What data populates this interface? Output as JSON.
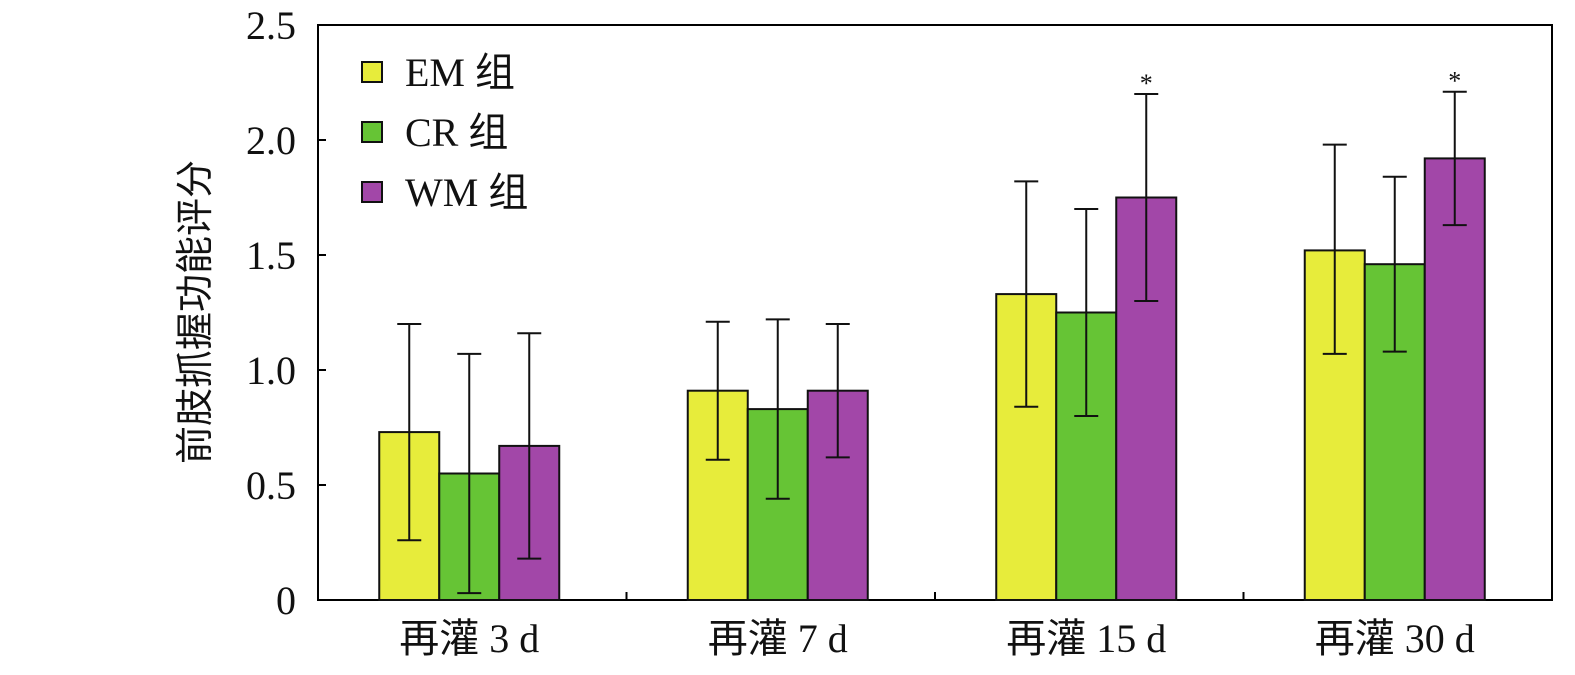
{
  "chart_data": {
    "type": "bar",
    "title": "",
    "xlabel": "",
    "ylabel": "前肢抓握功能评分",
    "ylim": [
      0,
      2.5
    ],
    "yticks": [
      "0",
      "0.5",
      "1.0",
      "1.5",
      "2.0",
      "2.5"
    ],
    "ytick_values": [
      0,
      0.5,
      1.0,
      1.5,
      2.0,
      2.5
    ],
    "categories": [
      "再灌 3 d",
      "再灌 7 d",
      "再灌 15 d",
      "再灌 30 d"
    ],
    "legend_position": "top-left",
    "series": [
      {
        "name": "EM 组",
        "color": "#e7ec3b",
        "values": [
          0.73,
          0.91,
          1.33,
          1.52
        ],
        "err_upper": [
          1.2,
          1.21,
          1.82,
          1.98
        ],
        "err_lower": [
          0.26,
          0.61,
          0.84,
          1.07
        ]
      },
      {
        "name": "CR 组",
        "color": "#66c435",
        "values": [
          0.55,
          0.83,
          1.25,
          1.46
        ],
        "err_upper": [
          1.07,
          1.22,
          1.7,
          1.84
        ],
        "err_lower": [
          0.03,
          0.44,
          0.8,
          1.08
        ]
      },
      {
        "name": "WM 组",
        "color": "#a247a8",
        "values": [
          0.67,
          0.91,
          1.75,
          1.92
        ],
        "err_upper": [
          1.16,
          1.2,
          2.2,
          2.21
        ],
        "err_lower": [
          0.18,
          0.62,
          1.3,
          1.63
        ]
      }
    ],
    "annotations": [
      {
        "text": "*",
        "series": "WM 组",
        "category": "再灌 15 d"
      },
      {
        "text": "*",
        "series": "WM 组",
        "category": "再灌 30 d"
      }
    ]
  }
}
